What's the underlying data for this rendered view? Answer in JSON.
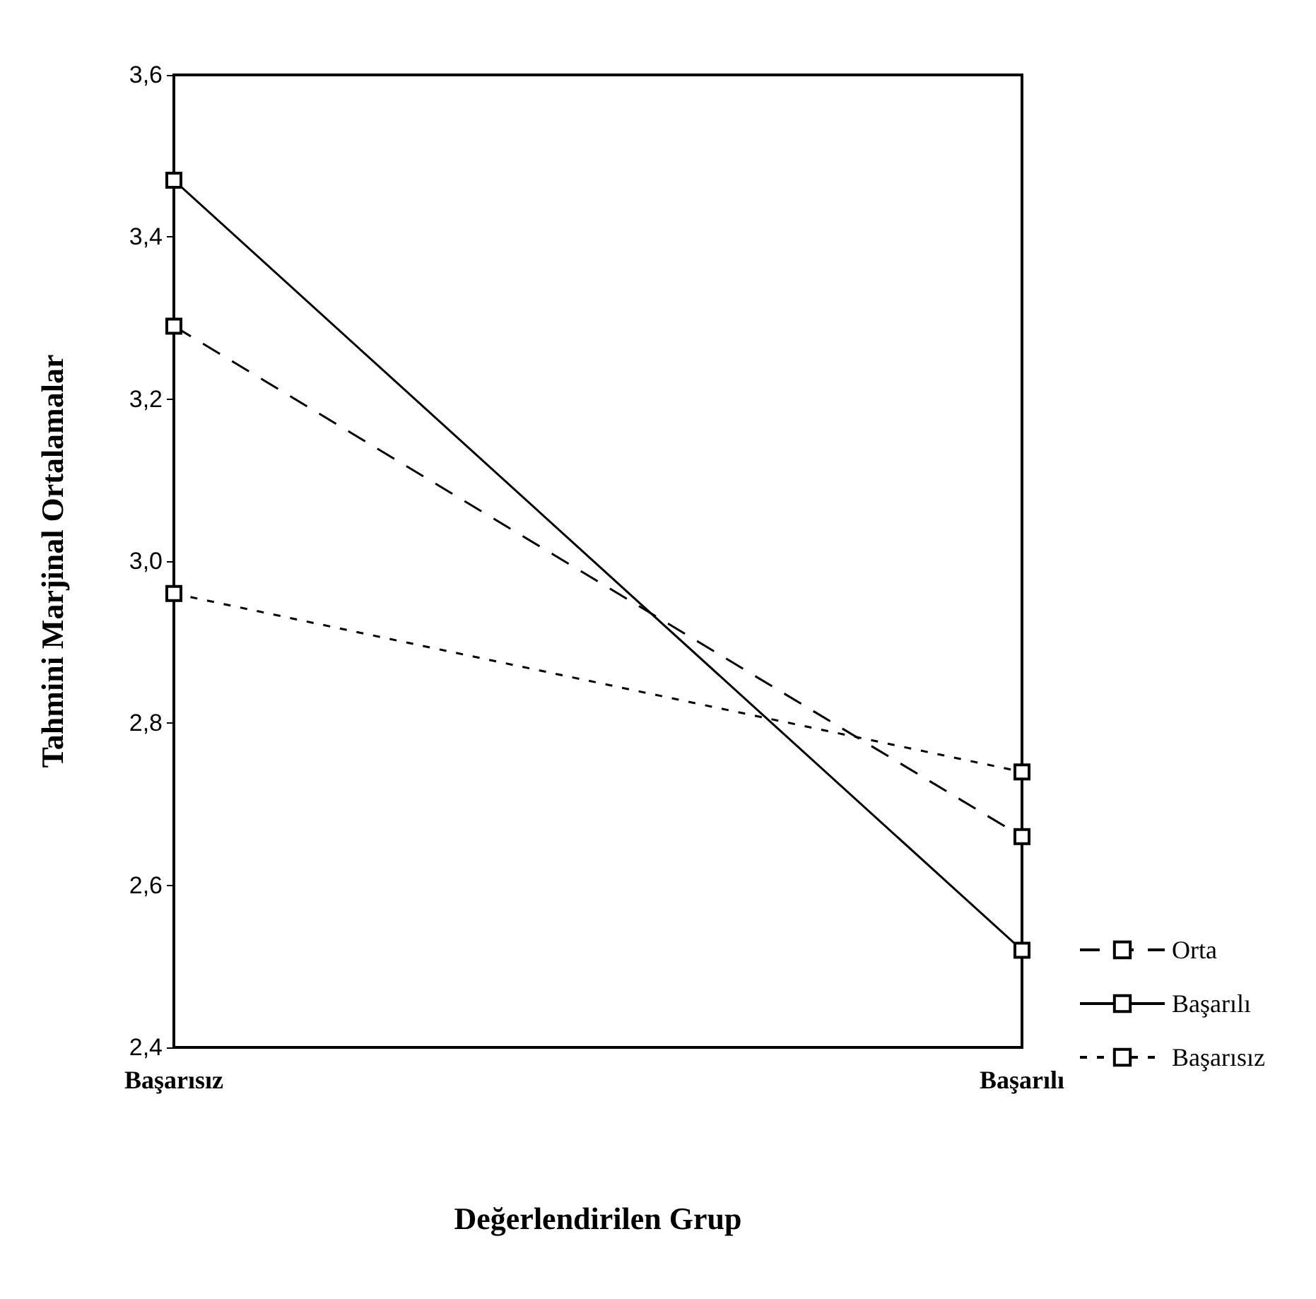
{
  "chart_data": {
    "type": "line",
    "xlabel": "Değerlendirilen Grup",
    "ylabel": "Tahmini Marjinal Ortalamalar",
    "categories": [
      "Başarısız",
      "Başarılı"
    ],
    "series": [
      {
        "name": "Orta",
        "color": "#000000",
        "values": [
          3.29,
          2.66
        ],
        "line_style": "dashed"
      },
      {
        "name": "Başarılı",
        "color": "#000000",
        "values": [
          3.47,
          2.52
        ],
        "line_style": "solid"
      },
      {
        "name": "Başarısız",
        "color": "#000000",
        "values": [
          2.96,
          2.74
        ],
        "line_style": "dotted"
      }
    ],
    "ylim": [
      2.4,
      3.6
    ],
    "yticks": [
      {
        "value": 2.4,
        "label": "2,4"
      },
      {
        "value": 2.6,
        "label": "2,6"
      },
      {
        "value": 2.8,
        "label": "2,8"
      },
      {
        "value": 3.0,
        "label": "3,0"
      },
      {
        "value": 3.2,
        "label": "3,2"
      },
      {
        "value": 3.4,
        "label": "3,4"
      },
      {
        "value": 3.6,
        "label": "3,6"
      }
    ],
    "marker": "square",
    "grid": false,
    "legend": "bottom right"
  }
}
